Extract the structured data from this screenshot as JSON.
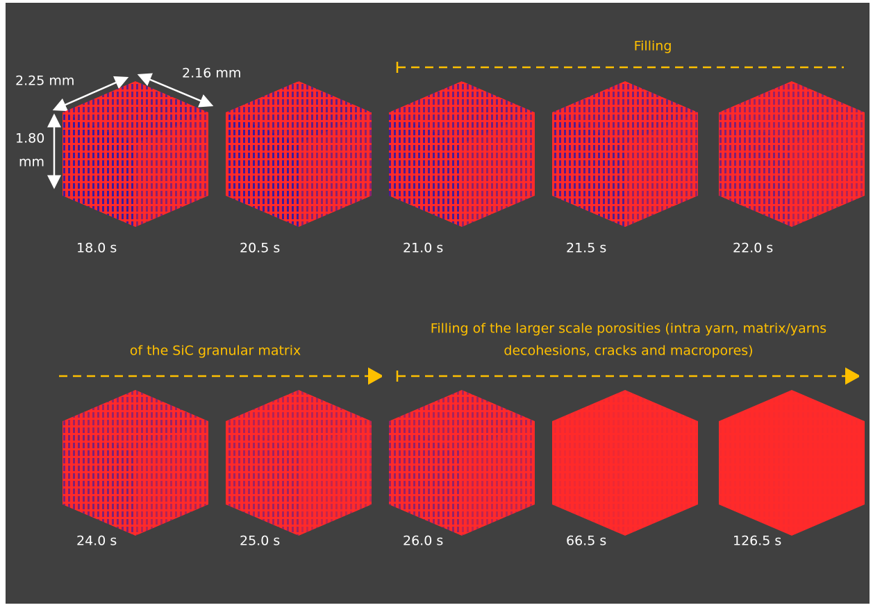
{
  "dimensions": {
    "width": "2.25 mm",
    "depth": "2.16 mm",
    "height_lines": [
      "1.80",
      "mm"
    ]
  },
  "annotations": {
    "filling": "Filling",
    "matrix": "of the SiC granular matrix",
    "porosities_lines": [
      "Filling of the larger scale porosities (intra yarn, matrix/yarns",
      "decohesions, cracks and macropores)"
    ]
  },
  "panels": [
    {
      "time": "18.0 s"
    },
    {
      "time": "20.5 s"
    },
    {
      "time": "21.0 s"
    },
    {
      "time": "21.5 s"
    },
    {
      "time": "22.0 s"
    },
    {
      "time": "24.0 s"
    },
    {
      "time": "25.0 s"
    },
    {
      "time": "26.0 s"
    },
    {
      "time": "66.5 s"
    },
    {
      "time": "126.5 s"
    }
  ]
}
